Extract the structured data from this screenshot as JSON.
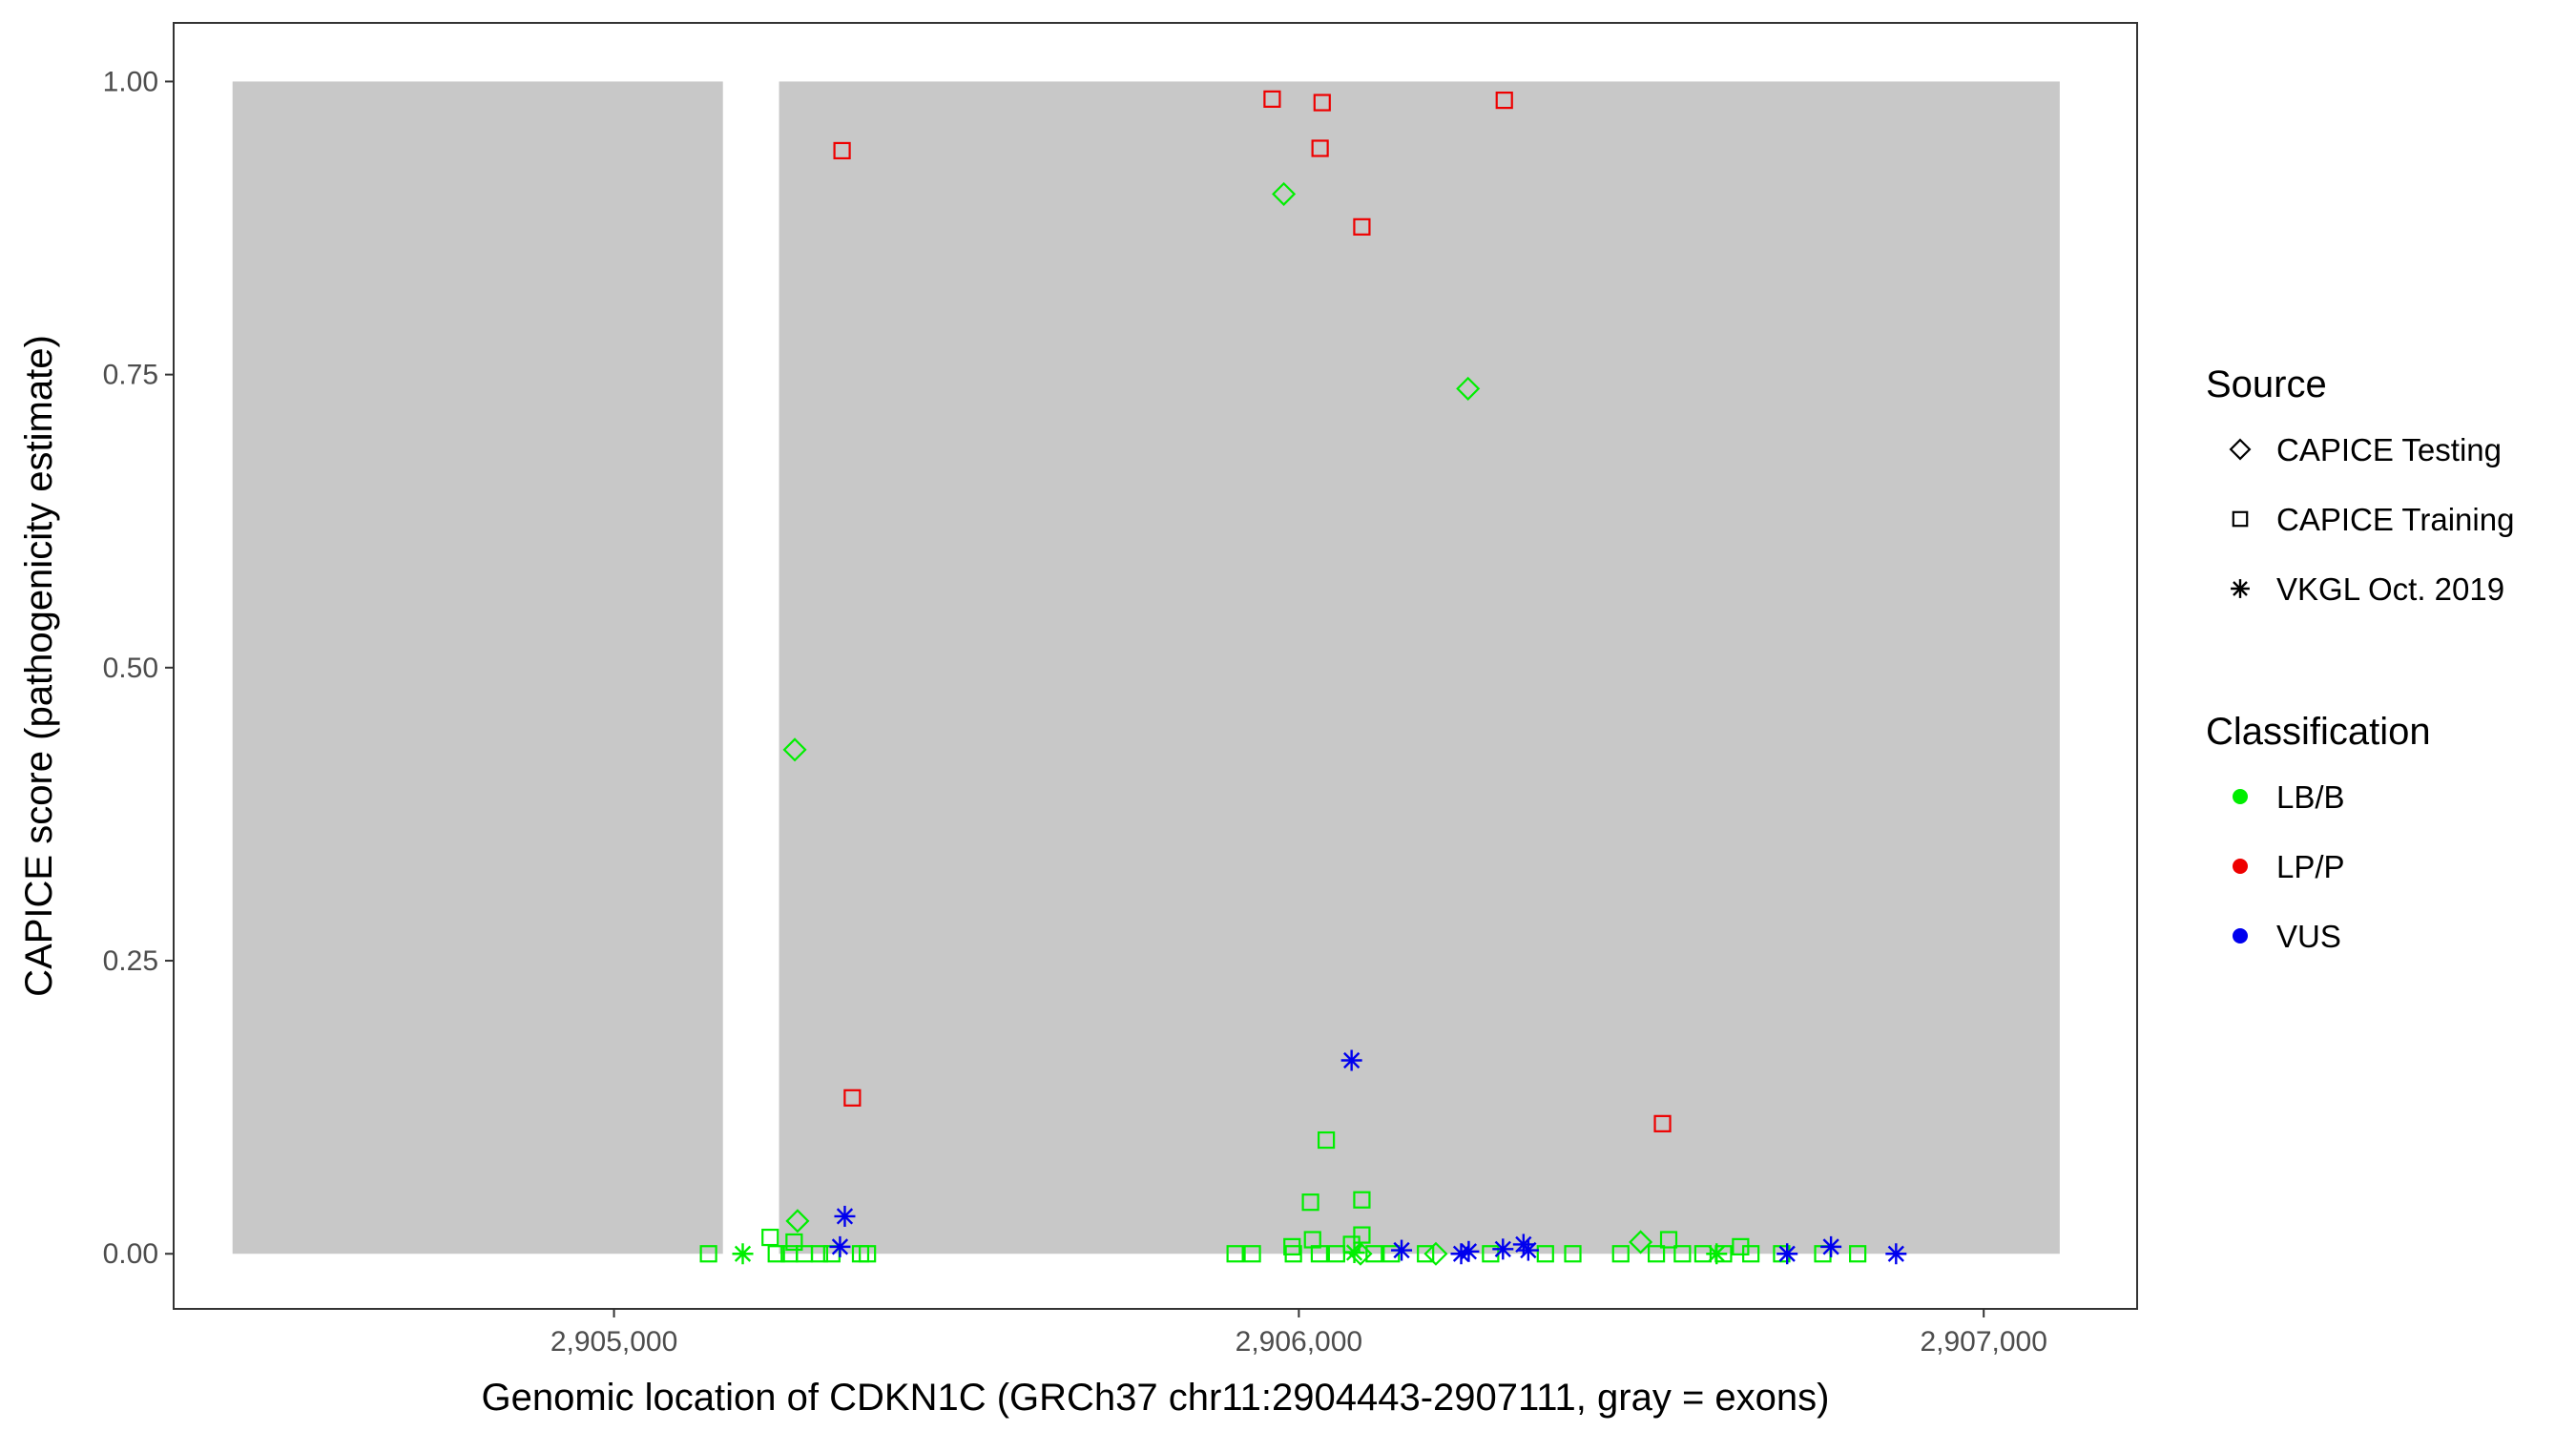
{
  "chart_data": {
    "type": "scatter",
    "title": "",
    "xlabel": "Genomic location of CDKN1C (GRCh37 chr11:2904443-2907111, gray = exons)",
    "ylabel": "CAPICE score (pathogenicity estimate)",
    "xlim": [
      2904357,
      2907224
    ],
    "ylim": [
      -0.047,
      1.05
    ],
    "x_ticks": [
      2905000,
      2906000,
      2907000
    ],
    "x_tick_labels": [
      "2,905,000",
      "2,906,000",
      "2,907,000"
    ],
    "y_ticks": [
      0,
      0.25,
      0.5,
      0.75,
      1
    ],
    "y_tick_labels": [
      "0.00",
      "0.25",
      "0.50",
      "0.75",
      "1.00"
    ],
    "grid": false,
    "exons": [
      {
        "start": 2904443,
        "end": 2905159
      },
      {
        "start": 2905241,
        "end": 2907111
      }
    ],
    "exon_color": "#c8c8c8",
    "legend_position": "right",
    "legend": {
      "source_title": "Source",
      "source_entries": [
        {
          "label": "CAPICE Testing",
          "shape": "diamond"
        },
        {
          "label": "CAPICE Training",
          "shape": "square"
        },
        {
          "label": "VKGL Oct. 2019",
          "shape": "asterisk"
        }
      ],
      "class_title": "Classification",
      "class_entries": [
        {
          "label": "LB/B",
          "color": "#00ee00"
        },
        {
          "label": "LP/P",
          "color": "#ee0000"
        },
        {
          "label": "VUS",
          "color": "#0000ee"
        }
      ]
    },
    "series": [
      {
        "name": "CAPICE Testing",
        "shape": "diamond",
        "points": [
          {
            "x": 2905264,
            "y": 0.43,
            "class": "LB/B"
          },
          {
            "x": 2905268,
            "y": 0.028,
            "class": "LB/B"
          },
          {
            "x": 2905978,
            "y": 0.904,
            "class": "LB/B"
          },
          {
            "x": 2906247,
            "y": 0.738,
            "class": "LB/B"
          },
          {
            "x": 2906499,
            "y": 0.01,
            "class": "LB/B"
          },
          {
            "x": 2906090,
            "y": 0.0,
            "class": "LB/B"
          },
          {
            "x": 2906200,
            "y": 0.0,
            "class": "LB/B"
          }
        ]
      },
      {
        "name": "CAPICE Training",
        "shape": "square",
        "points": [
          {
            "x": 2905333,
            "y": 0.941,
            "class": "LP/P"
          },
          {
            "x": 2905348,
            "y": 0.133,
            "class": "LP/P"
          },
          {
            "x": 2905961,
            "y": 0.985,
            "class": "LP/P"
          },
          {
            "x": 2906034,
            "y": 0.982,
            "class": "LP/P"
          },
          {
            "x": 2906031,
            "y": 0.943,
            "class": "LP/P"
          },
          {
            "x": 2906092,
            "y": 0.876,
            "class": "LP/P"
          },
          {
            "x": 2906300,
            "y": 0.984,
            "class": "LP/P"
          },
          {
            "x": 2906531,
            "y": 0.111,
            "class": "LP/P"
          },
          {
            "x": 2906040,
            "y": 0.097,
            "class": "LB/B"
          },
          {
            "x": 2906017,
            "y": 0.044,
            "class": "LB/B"
          },
          {
            "x": 2906092,
            "y": 0.046,
            "class": "LB/B"
          },
          {
            "x": 2906092,
            "y": 0.016,
            "class": "LB/B"
          },
          {
            "x": 2906020,
            "y": 0.012,
            "class": "LB/B"
          },
          {
            "x": 2905990,
            "y": 0.006,
            "class": "LB/B"
          },
          {
            "x": 2906077,
            "y": 0.008,
            "class": "LB/B"
          },
          {
            "x": 2905228,
            "y": 0.014,
            "class": "LB/B"
          },
          {
            "x": 2905263,
            "y": 0.01,
            "class": "LB/B"
          },
          {
            "x": 2906540,
            "y": 0.012,
            "class": "LB/B"
          },
          {
            "x": 2906645,
            "y": 0.006,
            "class": "LB/B"
          },
          {
            "x": 2905138,
            "y": 0.0,
            "class": "LB/B"
          },
          {
            "x": 2905237,
            "y": 0.0,
            "class": "LB/B"
          },
          {
            "x": 2905256,
            "y": 0.0,
            "class": "LB/B"
          },
          {
            "x": 2905278,
            "y": 0.0,
            "class": "LB/B"
          },
          {
            "x": 2905300,
            "y": 0.0,
            "class": "LB/B"
          },
          {
            "x": 2905318,
            "y": 0.0,
            "class": "LB/B"
          },
          {
            "x": 2905360,
            "y": 0.0,
            "class": "LB/B"
          },
          {
            "x": 2905370,
            "y": 0.0,
            "class": "LB/B"
          },
          {
            "x": 2905907,
            "y": 0.0,
            "class": "LB/B"
          },
          {
            "x": 2905932,
            "y": 0.0,
            "class": "LB/B"
          },
          {
            "x": 2905992,
            "y": 0.0,
            "class": "LB/B"
          },
          {
            "x": 2906030,
            "y": 0.0,
            "class": "LB/B"
          },
          {
            "x": 2906055,
            "y": 0.0,
            "class": "LB/B"
          },
          {
            "x": 2906110,
            "y": 0.0,
            "class": "LB/B"
          },
          {
            "x": 2906135,
            "y": 0.0,
            "class": "LB/B"
          },
          {
            "x": 2906185,
            "y": 0.0,
            "class": "LB/B"
          },
          {
            "x": 2906280,
            "y": 0.0,
            "class": "LB/B"
          },
          {
            "x": 2906360,
            "y": 0.0,
            "class": "LB/B"
          },
          {
            "x": 2906400,
            "y": 0.0,
            "class": "LB/B"
          },
          {
            "x": 2906470,
            "y": 0.0,
            "class": "LB/B"
          },
          {
            "x": 2906522,
            "y": 0.0,
            "class": "LB/B"
          },
          {
            "x": 2906560,
            "y": 0.0,
            "class": "LB/B"
          },
          {
            "x": 2906590,
            "y": 0.0,
            "class": "LB/B"
          },
          {
            "x": 2906620,
            "y": 0.0,
            "class": "LB/B"
          },
          {
            "x": 2906660,
            "y": 0.0,
            "class": "LB/B"
          },
          {
            "x": 2906705,
            "y": 0.0,
            "class": "LB/B"
          },
          {
            "x": 2906765,
            "y": 0.0,
            "class": "LB/B"
          },
          {
            "x": 2906816,
            "y": 0.0,
            "class": "LB/B"
          }
        ]
      },
      {
        "name": "VKGL Oct. 2019",
        "shape": "asterisk",
        "points": [
          {
            "x": 2906077,
            "y": 0.165,
            "class": "VUS"
          },
          {
            "x": 2905337,
            "y": 0.032,
            "class": "VUS"
          },
          {
            "x": 2905330,
            "y": 0.006,
            "class": "VUS"
          },
          {
            "x": 2906150,
            "y": 0.003,
            "class": "VUS"
          },
          {
            "x": 2906237,
            "y": 0.0,
            "class": "VUS"
          },
          {
            "x": 2906248,
            "y": 0.002,
            "class": "VUS"
          },
          {
            "x": 2906298,
            "y": 0.004,
            "class": "VUS"
          },
          {
            "x": 2906328,
            "y": 0.008,
            "class": "VUS"
          },
          {
            "x": 2906335,
            "y": 0.003,
            "class": "VUS"
          },
          {
            "x": 2906713,
            "y": 0.0,
            "class": "VUS"
          },
          {
            "x": 2906777,
            "y": 0.006,
            "class": "VUS"
          },
          {
            "x": 2906872,
            "y": 0.0,
            "class": "VUS"
          },
          {
            "x": 2905188,
            "y": 0.0,
            "class": "LB/B"
          },
          {
            "x": 2906081,
            "y": 0.001,
            "class": "LB/B"
          },
          {
            "x": 2906610,
            "y": 0.0,
            "class": "LB/B"
          }
        ]
      }
    ]
  }
}
